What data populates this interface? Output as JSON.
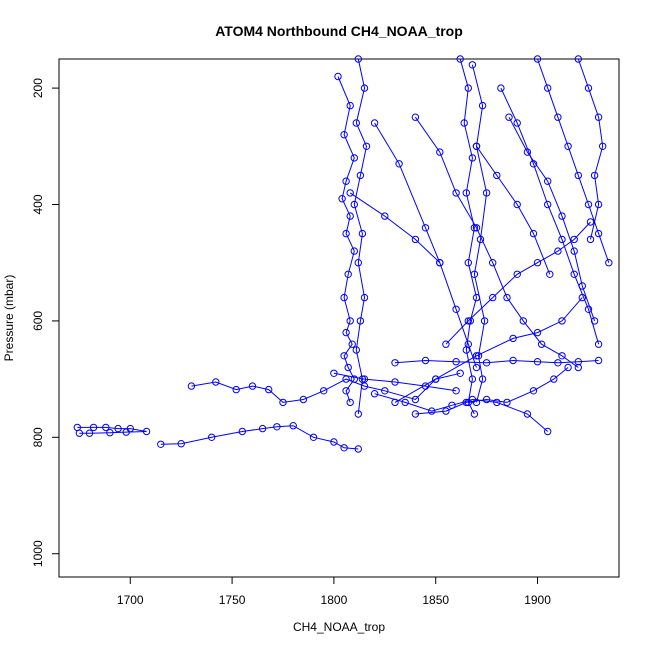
{
  "chart_data": {
    "type": "scatter",
    "title": "ATOM4 Northbound CH4_NOAA_trop",
    "xlabel": "CH4_NOAA_trop",
    "ylabel": "Pressure (mbar)",
    "xlim": [
      1665,
      1940
    ],
    "ylim": [
      1040,
      150
    ],
    "y_axis_inverted": true,
    "x_ticks": [
      1700,
      1750,
      1800,
      1850,
      1900
    ],
    "y_ticks": [
      200,
      400,
      600,
      800,
      1000
    ],
    "grid": false,
    "legend": "none",
    "marker": "open-circle",
    "connect_points": true,
    "color": "#0000ff",
    "series": [
      {
        "x": [
          1674,
          1682,
          1688,
          1694,
          1700,
          1708,
          1698,
          1690,
          1680,
          1675
        ],
        "y": [
          783,
          783,
          783,
          785,
          785,
          790,
          791,
          792,
          793,
          793
        ]
      },
      {
        "x": [
          1715,
          1725,
          1740,
          1755,
          1765,
          1772,
          1780,
          1790,
          1800,
          1805,
          1812
        ],
        "y": [
          812,
          811,
          800,
          790,
          785,
          782,
          780,
          800,
          808,
          818,
          820
        ]
      },
      {
        "x": [
          1730,
          1742,
          1752,
          1760,
          1768,
          1775,
          1785,
          1795,
          1806,
          1815,
          1825,
          1840,
          1850,
          1862
        ],
        "y": [
          712,
          705,
          718,
          712,
          718,
          740,
          735,
          720,
          700,
          712,
          720,
          735,
          700,
          690
        ]
      },
      {
        "x": [
          1802,
          1808,
          1805,
          1810,
          1806,
          1804,
          1808,
          1806,
          1810,
          1807,
          1805,
          1808,
          1806,
          1809,
          1805,
          1807,
          1810,
          1806,
          1808
        ],
        "y": [
          180,
          230,
          280,
          320,
          360,
          390,
          420,
          450,
          480,
          520,
          560,
          600,
          620,
          640,
          660,
          680,
          700,
          720,
          740
        ]
      },
      {
        "x": [
          1812,
          1815,
          1811,
          1816,
          1813,
          1810,
          1814,
          1812,
          1815,
          1813,
          1811,
          1814,
          1812
        ],
        "y": [
          150,
          200,
          260,
          300,
          350,
          400,
          450,
          500,
          560,
          600,
          650,
          700,
          760
        ]
      },
      {
        "x": [
          1820,
          1832,
          1845,
          1852,
          1860,
          1866,
          1870
        ],
        "y": [
          260,
          330,
          440,
          500,
          580,
          640,
          680
        ]
      },
      {
        "x": [
          1862,
          1866,
          1864,
          1868,
          1865,
          1869,
          1866,
          1870,
          1867,
          1865,
          1868,
          1866,
          1869
        ],
        "y": [
          150,
          200,
          260,
          320,
          380,
          440,
          500,
          560,
          600,
          650,
          700,
          740,
          760
        ]
      },
      {
        "x": [
          1868,
          1873,
          1870,
          1875,
          1872,
          1869,
          1874,
          1871,
          1873,
          1870
        ],
        "y": [
          160,
          230,
          300,
          380,
          460,
          520,
          600,
          660,
          700,
          740
        ]
      },
      {
        "x": [
          1840,
          1852,
          1860,
          1870,
          1878,
          1885,
          1893,
          1902,
          1912,
          1920
        ],
        "y": [
          250,
          310,
          380,
          440,
          500,
          560,
          600,
          640,
          660,
          680
        ]
      },
      {
        "x": [
          1882,
          1890,
          1898,
          1905,
          1912,
          1918,
          1925,
          1930
        ],
        "y": [
          200,
          260,
          330,
          400,
          460,
          520,
          580,
          640
        ]
      },
      {
        "x": [
          1900,
          1905,
          1910,
          1915,
          1920,
          1925,
          1930,
          1935
        ],
        "y": [
          150,
          200,
          250,
          300,
          350,
          400,
          450,
          500
        ]
      },
      {
        "x": [
          1920,
          1925,
          1930,
          1932,
          1928,
          1930,
          1926
        ],
        "y": [
          150,
          200,
          250,
          300,
          350,
          400,
          460
        ]
      },
      {
        "x": [
          1886,
          1895,
          1905,
          1912,
          1918,
          1922,
          1928
        ],
        "y": [
          250,
          310,
          360,
          420,
          480,
          540,
          600
        ]
      },
      {
        "x": [
          1830,
          1845,
          1860,
          1875,
          1888,
          1900,
          1910,
          1920,
          1930
        ],
        "y": [
          672,
          668,
          670,
          672,
          668,
          670,
          672,
          670,
          668
        ]
      },
      {
        "x": [
          1820,
          1835,
          1848,
          1858,
          1868,
          1880,
          1895,
          1905
        ],
        "y": [
          725,
          740,
          755,
          745,
          735,
          740,
          760,
          790
        ]
      },
      {
        "x": [
          1840,
          1855,
          1865,
          1875,
          1885,
          1898,
          1908,
          1915
        ],
        "y": [
          760,
          755,
          740,
          735,
          740,
          720,
          700,
          680
        ]
      },
      {
        "x": [
          1830,
          1850,
          1870,
          1888,
          1900,
          1912,
          1922
        ],
        "y": [
          740,
          700,
          660,
          630,
          620,
          600,
          560
        ]
      },
      {
        "x": [
          1855,
          1866,
          1878,
          1890,
          1900,
          1910,
          1918,
          1926
        ],
        "y": [
          640,
          600,
          560,
          520,
          500,
          480,
          460,
          430
        ]
      },
      {
        "x": [
          1808,
          1825,
          1840,
          1852
        ],
        "y": [
          380,
          420,
          460,
          500
        ]
      },
      {
        "x": [
          1870,
          1880,
          1890,
          1898,
          1906
        ],
        "y": [
          300,
          350,
          400,
          450,
          520
        ]
      },
      {
        "x": [
          1800,
          1815,
          1830,
          1845,
          1860
        ],
        "y": [
          690,
          700,
          705,
          712,
          720
        ]
      }
    ]
  }
}
